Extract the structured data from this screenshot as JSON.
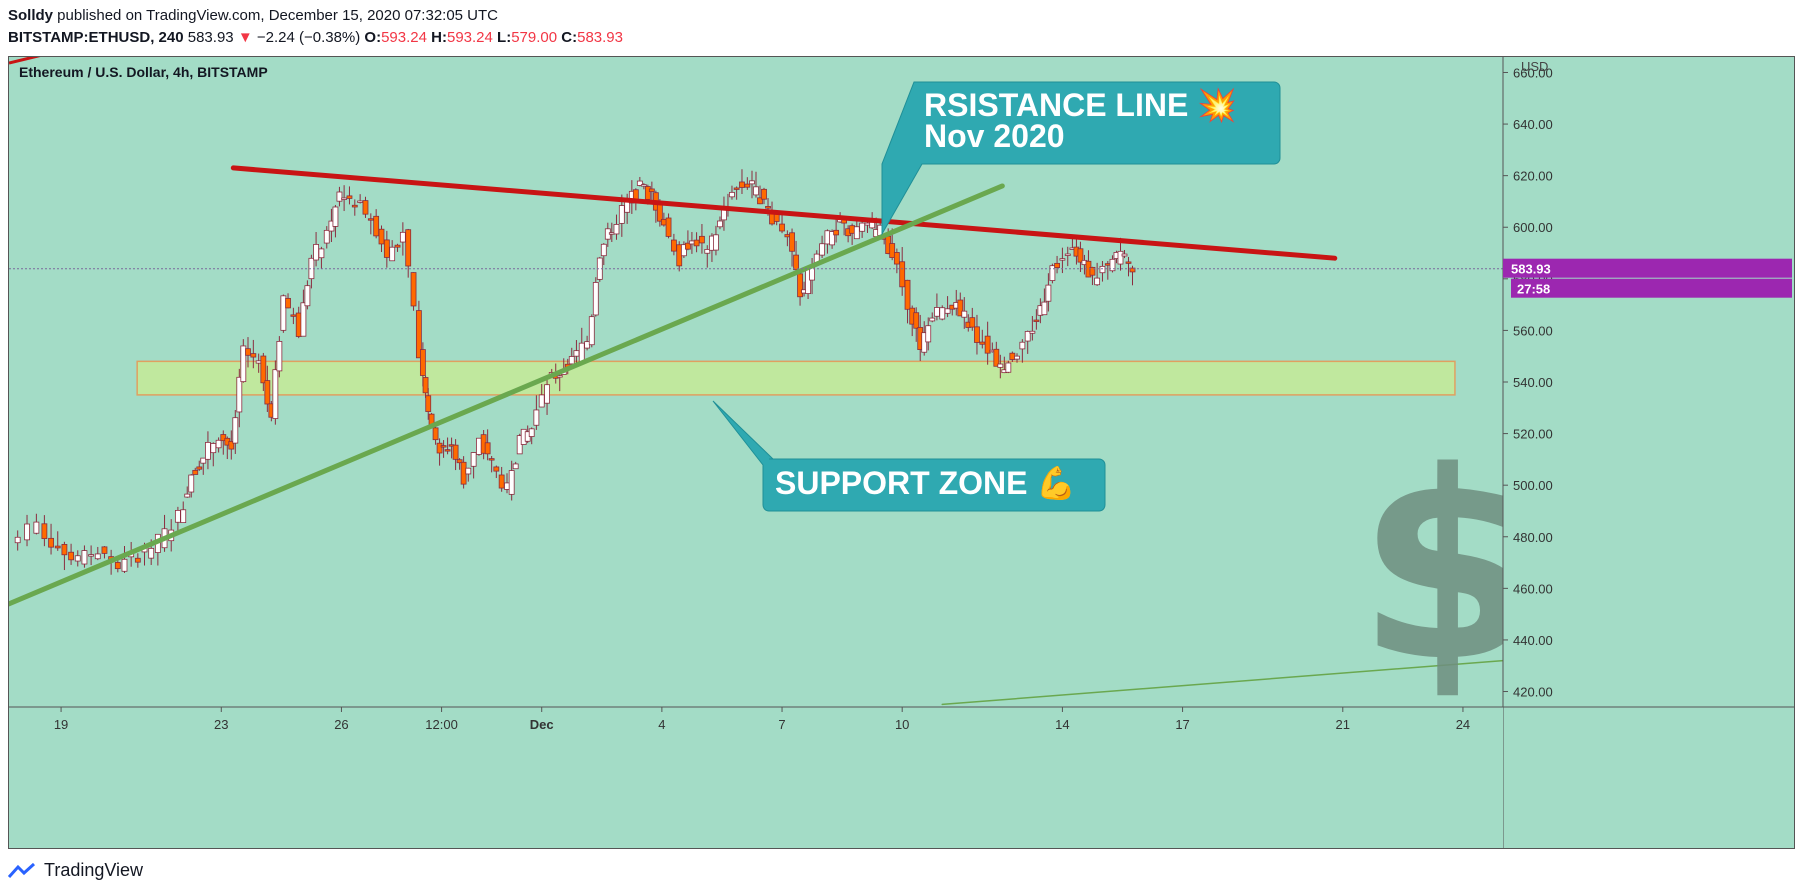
{
  "header": {
    "author": "Solldy",
    "published_text": " published on TradingView.com, December 15, 2020 07:32:05 UTC",
    "symbol": "BITSTAMP:ETHUSD, 240",
    "last": "583.93",
    "arrow": "▼",
    "change": "−2.24 (−0.38%)",
    "o_label": "O:",
    "o_value": "593.24",
    "h_label": "H:",
    "h_value": "593.24",
    "l_label": "L:",
    "l_value": "579.00",
    "c_label": "C:",
    "c_value": "583.93"
  },
  "chart_title": "Ethereum / U.S. Dollar, 4h, BITSTAMP",
  "currency_label": "USD",
  "price_badge": "583.93",
  "countdown_badge": "27:58",
  "callouts": {
    "resistance_line1": "RSISTANCE LINE 💥",
    "resistance_line2": "Nov 2020",
    "support": "SUPPORT ZONE 💪"
  },
  "watermark_symbol": "$",
  "footer_brand": "TradingView",
  "colors": {
    "background": "#a3dcc6",
    "up_candle": "#ffffff",
    "down_candle": "#ff6a00",
    "wick": "#8b2c3f",
    "resistance": "#c81414",
    "trendline": "#6aa84f",
    "support_fill": "#c5ea96",
    "callout": "#2fa9b1",
    "badge": "#9c27b0"
  },
  "chart_data": {
    "type": "candlestick",
    "timeframe": "4h",
    "y_ticks": [
      420,
      440,
      460,
      480,
      500,
      520,
      540,
      560,
      580,
      600,
      620,
      640,
      660
    ],
    "y_tick_labels": [
      "420.00",
      "440.00",
      "460.00",
      "480.00",
      "500.00",
      "520.00",
      "540.00",
      "560.00",
      "580.00",
      "600.00",
      "620.00",
      "640.00",
      "660.00"
    ],
    "ylim": [
      414,
      666
    ],
    "x_labels": [
      "19",
      "23",
      "26",
      "12:00",
      "Dec",
      "4",
      "7",
      "10",
      "14",
      "17",
      "21",
      "24"
    ],
    "x_label_days": [
      0,
      4,
      7,
      9.5,
      12,
      15,
      18,
      21,
      25,
      28,
      32,
      35
    ],
    "xlim_days": [
      -1.3,
      36
    ],
    "last_price": 583.93,
    "close_series": [
      [
        -1.2,
        480
      ],
      [
        -0.5,
        484
      ],
      [
        0,
        476
      ],
      [
        0.5,
        471
      ],
      [
        1,
        475
      ],
      [
        1.5,
        468
      ],
      [
        2,
        473
      ],
      [
        2.5,
        478
      ],
      [
        3,
        488
      ],
      [
        3.3,
        504
      ],
      [
        3.6,
        511
      ],
      [
        4,
        520
      ],
      [
        4.3,
        514
      ],
      [
        4.6,
        552
      ],
      [
        5,
        549
      ],
      [
        5.3,
        527
      ],
      [
        5.6,
        573
      ],
      [
        6,
        560
      ],
      [
        6.3,
        588
      ],
      [
        6.7,
        596
      ],
      [
        7,
        613
      ],
      [
        7.4,
        610
      ],
      [
        7.8,
        604
      ],
      [
        8.2,
        590
      ],
      [
        8.6,
        597
      ],
      [
        9,
        552
      ],
      [
        9.2,
        530
      ],
      [
        9.5,
        513
      ],
      [
        9.8,
        516
      ],
      [
        10.1,
        503
      ],
      [
        10.5,
        517
      ],
      [
        10.8,
        508
      ],
      [
        11.2,
        498
      ],
      [
        11.5,
        517
      ],
      [
        11.8,
        522
      ],
      [
        12.2,
        540
      ],
      [
        12.5,
        544
      ],
      [
        12.8,
        548
      ],
      [
        13.2,
        556
      ],
      [
        13.5,
        590
      ],
      [
        13.8,
        600
      ],
      [
        14.2,
        610
      ],
      [
        14.5,
        615
      ],
      [
        14.8,
        612
      ],
      [
        15.1,
        602
      ],
      [
        15.5,
        588
      ],
      [
        15.8,
        597
      ],
      [
        16.2,
        590
      ],
      [
        16.5,
        602
      ],
      [
        16.8,
        614
      ],
      [
        17.2,
        617
      ],
      [
        17.5,
        612
      ],
      [
        17.8,
        604
      ],
      [
        18.2,
        598
      ],
      [
        18.5,
        572
      ],
      [
        18.8,
        586
      ],
      [
        19.2,
        596
      ],
      [
        19.5,
        601
      ],
      [
        19.8,
        597
      ],
      [
        20.2,
        600
      ],
      [
        20.5,
        598
      ],
      [
        20.8,
        590
      ],
      [
        21.2,
        571
      ],
      [
        21.5,
        554
      ],
      [
        21.8,
        565
      ],
      [
        22.2,
        571
      ],
      [
        22.5,
        568
      ],
      [
        22.8,
        560
      ],
      [
        23.2,
        553
      ],
      [
        23.5,
        545
      ],
      [
        23.8,
        550
      ],
      [
        24.2,
        558
      ],
      [
        24.5,
        568
      ],
      [
        24.8,
        585
      ],
      [
        25.2,
        592
      ],
      [
        25.5,
        588
      ],
      [
        25.8,
        580
      ],
      [
        26.2,
        585
      ],
      [
        26.5,
        590
      ],
      [
        26.8,
        584
      ]
    ],
    "lines": [
      {
        "name": "resistance",
        "from": [
          4.3,
          623
        ],
        "to": [
          31.8,
          588
        ]
      },
      {
        "name": "ascending-trendline",
        "from": [
          -1.3,
          454
        ],
        "to": [
          23.5,
          616
        ]
      },
      {
        "name": "lower-trendline",
        "from": [
          22,
          415
        ],
        "to": [
          36,
          432
        ]
      }
    ],
    "zones": [
      {
        "name": "support-zone",
        "x_from": [
          1.9
        ],
        "x_to": [
          34.8
        ],
        "y_from": 535,
        "y_to": 548
      }
    ],
    "grid": false
  }
}
